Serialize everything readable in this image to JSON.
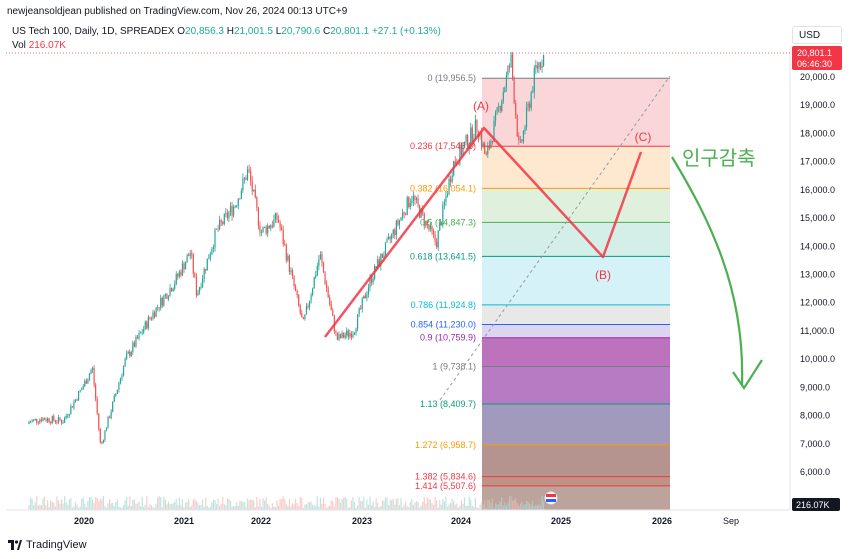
{
  "header": {
    "publisher_line": "newjeansoldjean published on TradingView.com, Nov 26, 2024 00:13 UTC+9"
  },
  "legend": {
    "symbol": "US Tech 100, Daily, 1D, SPREADEX",
    "open_label": "O",
    "open_value": "20,856.3",
    "high_label": "H",
    "high_value": "21,001.5",
    "low_label": "L",
    "low_value": "20,790.6",
    "close_label": "C",
    "close_value": "20,801.1",
    "change": "+27.1 (+0.13%)",
    "volume_label": "Vol",
    "volume_value": "216.07K"
  },
  "currency_button": "USD",
  "last_price_tag": {
    "price": "20,801.1",
    "countdown": "06:46:30"
  },
  "volume_tag": "216.07K",
  "annotation_text": "인구감축",
  "footer": {
    "brand": "TradingView"
  },
  "colors": {
    "candle_up": "#26a69a",
    "candle_down": "#ef5350",
    "wave_lines": "#f23645",
    "arrow": "#4caf50",
    "price_tag": "#f23645"
  },
  "chart_data": {
    "type": "candlestick",
    "y_axis": {
      "min": 5000,
      "max": 21500,
      "ticks": [
        "20,000.0",
        "19,000.0",
        "18,000.0",
        "17,000.0",
        "16,000.0",
        "15,000.0",
        "14,000.0",
        "13,000.0",
        "12,000.0",
        "11,000.0",
        "10,000.0",
        "9,000.0",
        "8,000.0",
        "7,000.0",
        "6,000.0"
      ]
    },
    "x_axis": {
      "ticks": [
        "2020",
        "2021",
        "2022",
        "2023",
        "2024",
        "2025",
        "2026",
        "Sep"
      ]
    },
    "price_path": [
      {
        "date": "2019-04",
        "value": 7700
      },
      {
        "date": "2019-07",
        "value": 7900
      },
      {
        "date": "2019-10",
        "value": 7800
      },
      {
        "date": "2020-01",
        "value": 9100
      },
      {
        "date": "2020-02",
        "value": 9700
      },
      {
        "date": "2020-03",
        "value": 6900
      },
      {
        "date": "2020-06",
        "value": 10000
      },
      {
        "date": "2020-09",
        "value": 11500
      },
      {
        "date": "2020-12",
        "value": 12800
      },
      {
        "date": "2021-02",
        "value": 13800
      },
      {
        "date": "2021-03",
        "value": 12300
      },
      {
        "date": "2021-06",
        "value": 14500
      },
      {
        "date": "2021-09",
        "value": 15500
      },
      {
        "date": "2021-11",
        "value": 16700
      },
      {
        "date": "2022-01",
        "value": 14500
      },
      {
        "date": "2022-03",
        "value": 15000
      },
      {
        "date": "2022-06",
        "value": 11200
      },
      {
        "date": "2022-08",
        "value": 13700
      },
      {
        "date": "2022-10",
        "value": 10700
      },
      {
        "date": "2022-12",
        "value": 11000
      },
      {
        "date": "2023-02",
        "value": 12800
      },
      {
        "date": "2023-07",
        "value": 15800
      },
      {
        "date": "2023-10",
        "value": 14100
      },
      {
        "date": "2023-12",
        "value": 16900
      },
      {
        "date": "2024-03",
        "value": 18300
      },
      {
        "date": "2024-04",
        "value": 17100
      },
      {
        "date": "2024-07",
        "value": 20600
      },
      {
        "date": "2024-08",
        "value": 17300
      },
      {
        "date": "2024-10",
        "value": 20300
      },
      {
        "date": "2024-11",
        "value": 20801.1
      }
    ],
    "fib_levels": [
      {
        "ratio": "0",
        "value": 19956.5,
        "label": "0 (19,956.5)",
        "color": "#787b86"
      },
      {
        "ratio": "0.236",
        "value": 17545.6,
        "label": "0.236 (17,545.6)",
        "color": "#f23645"
      },
      {
        "ratio": "0.382",
        "value": 16054.1,
        "label": "0.382 (16,054.1)",
        "color": "#ff9800"
      },
      {
        "ratio": "0.5",
        "value": 14847.3,
        "label": "0.5 (14,847.3)",
        "color": "#4caf50"
      },
      {
        "ratio": "0.618",
        "value": 13641.5,
        "label": "0.618 (13,641.5)",
        "color": "#089981"
      },
      {
        "ratio": "0.786",
        "value": 11924.8,
        "label": "0.786 (11,924.8)",
        "color": "#00bcd4"
      },
      {
        "ratio": "0.854",
        "value": 11230.0,
        "label": "0.854 (11,230.0)",
        "color": "#2962ff"
      },
      {
        "ratio": "0.9",
        "value": 10759.9,
        "label": "0.9 (10,759.9)",
        "color": "#9c27b0"
      },
      {
        "ratio": "1",
        "value": 9738.1,
        "label": "1 (9,738.1)",
        "color": "#787b86"
      },
      {
        "ratio": "1.13",
        "value": 8409.7,
        "label": "1.13 (8,409.7)",
        "color": "#089981"
      },
      {
        "ratio": "1.272",
        "value": 6958.7,
        "label": "1.272 (6,958.7)",
        "color": "#ff9800"
      },
      {
        "ratio": "1.382",
        "value": 5834.6,
        "label": "1.382 (5,834.6)",
        "color": "#f23645"
      },
      {
        "ratio": "1.414",
        "value": 5507.6,
        "label": "1.414 (5,507.6)",
        "color": "#f23645"
      }
    ],
    "waves": [
      {
        "label": "(A)"
      },
      {
        "label": "(B)"
      },
      {
        "label": "(C)"
      }
    ]
  }
}
